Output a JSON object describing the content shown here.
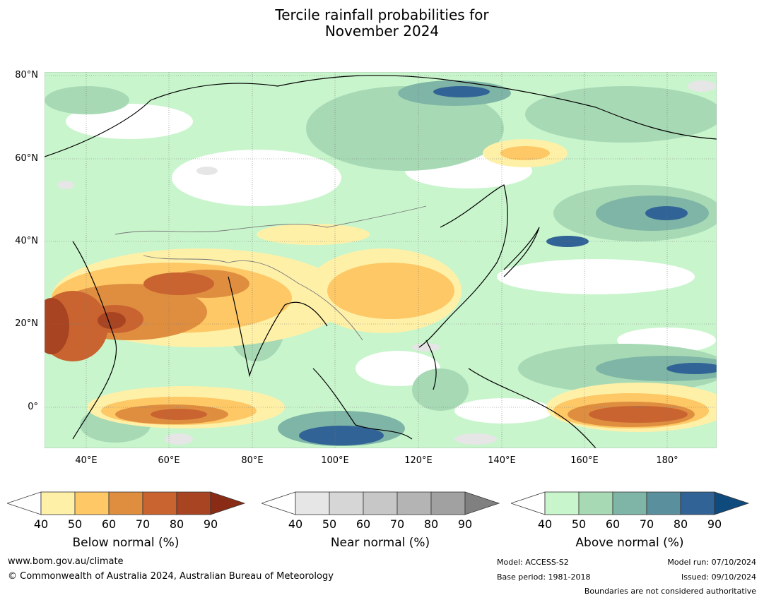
{
  "title": {
    "line1": "Tercile rainfall probabilities for",
    "line2": "November 2024"
  },
  "map": {
    "lat_labels": [
      "80°N",
      "60°N",
      "40°N",
      "20°N",
      "0°"
    ],
    "lon_labels": [
      "40°E",
      "60°E",
      "80°E",
      "100°E",
      "120°E",
      "140°E",
      "160°E",
      "180°"
    ]
  },
  "legends": {
    "below": {
      "title": "Below normal (%)",
      "ticks": [
        "40",
        "50",
        "60",
        "70",
        "80",
        "90"
      ],
      "colors": [
        "#fff0a8",
        "#fdc865",
        "#df8e40",
        "#c96431",
        "#a84421",
        "#8a2c15"
      ]
    },
    "near": {
      "title": "Near normal (%)",
      "ticks": [
        "40",
        "50",
        "60",
        "70",
        "80",
        "90"
      ],
      "colors": [
        "#e6e6e6",
        "#d6d6d6",
        "#c7c7c7",
        "#b4b4b4",
        "#a1a1a1",
        "#808080"
      ]
    },
    "above": {
      "title": "Above normal (%)",
      "ticks": [
        "40",
        "50",
        "60",
        "70",
        "80",
        "90"
      ],
      "colors": [
        "#c8f5cc",
        "#a7d9b5",
        "#7fb5a6",
        "#5a8f9e",
        "#316396",
        "#0f4a7d"
      ]
    }
  },
  "footer": {
    "url": "www.bom.gov.au/climate",
    "copyright": "© Commonwealth of Australia 2024, Australian Bureau of Meteorology",
    "model": "Model: ACCESS-S2",
    "base_period": "Base period: 1981-2018",
    "model_run": "Model run: 07/10/2024",
    "issued": "Issued: 09/10/2024",
    "disclaimer": "Boundaries are not considered authoritative"
  }
}
